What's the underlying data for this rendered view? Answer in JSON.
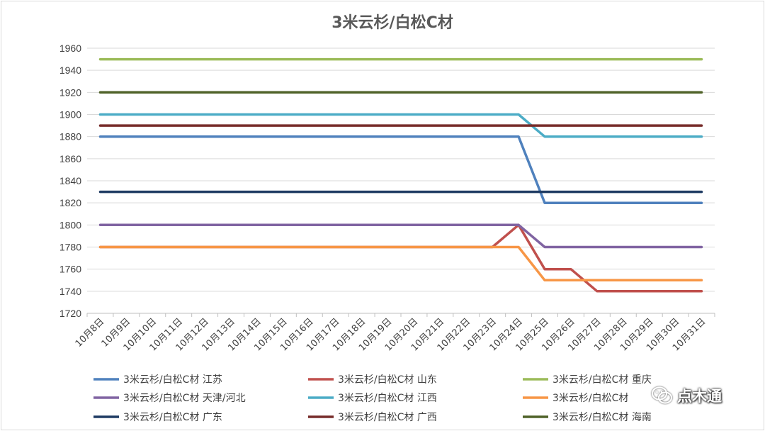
{
  "chart_data": {
    "type": "line",
    "title": "3米云杉/白松C材",
    "categories": [
      "10月8日",
      "10月9日",
      "10月10日",
      "10月11日",
      "10月12日",
      "10月13日",
      "10月14日",
      "10月15日",
      "10月16日",
      "10月17日",
      "10月18日",
      "10月19日",
      "10月20日",
      "10月21日",
      "10月22日",
      "10月23日",
      "10月24日",
      "10月25日",
      "10月26日",
      "10月27日",
      "10月28日",
      "10月29日",
      "10月30日",
      "10月31日"
    ],
    "ylim": [
      1720,
      1960
    ],
    "yticks": [
      1720,
      1740,
      1760,
      1780,
      1800,
      1820,
      1840,
      1860,
      1880,
      1900,
      1920,
      1940,
      1960
    ],
    "grid": true,
    "legend_position": "bottom",
    "series": [
      {
        "name": "3米云杉/白松C材 江苏",
        "color": "#4F81BD",
        "values": [
          1880,
          1880,
          1880,
          1880,
          1880,
          1880,
          1880,
          1880,
          1880,
          1880,
          1880,
          1880,
          1880,
          1880,
          1880,
          1880,
          1880,
          1820,
          1820,
          1820,
          1820,
          1820,
          1820,
          1820
        ]
      },
      {
        "name": "3米云杉/白松C材 山东",
        "color": "#C0504D",
        "values": [
          1780,
          1780,
          1780,
          1780,
          1780,
          1780,
          1780,
          1780,
          1780,
          1780,
          1780,
          1780,
          1780,
          1780,
          1780,
          1780,
          1800,
          1760,
          1760,
          1740,
          1740,
          1740,
          1740,
          1740
        ]
      },
      {
        "name": "3米云杉/白松C材 重庆",
        "color": "#9BBB59",
        "values": [
          1950,
          1950,
          1950,
          1950,
          1950,
          1950,
          1950,
          1950,
          1950,
          1950,
          1950,
          1950,
          1950,
          1950,
          1950,
          1950,
          1950,
          1950,
          1950,
          1950,
          1950,
          1950,
          1950,
          1950
        ]
      },
      {
        "name": "3米云杉/白松C材 天津/河北",
        "color": "#8064A2",
        "values": [
          1800,
          1800,
          1800,
          1800,
          1800,
          1800,
          1800,
          1800,
          1800,
          1800,
          1800,
          1800,
          1800,
          1800,
          1800,
          1800,
          1800,
          1780,
          1780,
          1780,
          1780,
          1780,
          1780,
          1780
        ]
      },
      {
        "name": "3米云杉/白松C材 江西",
        "color": "#4BACC6",
        "values": [
          1900,
          1900,
          1900,
          1900,
          1900,
          1900,
          1900,
          1900,
          1900,
          1900,
          1900,
          1900,
          1900,
          1900,
          1900,
          1900,
          1900,
          1880,
          1880,
          1880,
          1880,
          1880,
          1880,
          1880
        ]
      },
      {
        "name": "3米云杉/白松C材",
        "color": "#F79646",
        "values": [
          1780,
          1780,
          1780,
          1780,
          1780,
          1780,
          1780,
          1780,
          1780,
          1780,
          1780,
          1780,
          1780,
          1780,
          1780,
          1780,
          1780,
          1750,
          1750,
          1750,
          1750,
          1750,
          1750,
          1750
        ]
      },
      {
        "name": "3米云杉/白松C材 广东",
        "color": "#1F3B63",
        "values": [
          1830,
          1830,
          1830,
          1830,
          1830,
          1830,
          1830,
          1830,
          1830,
          1830,
          1830,
          1830,
          1830,
          1830,
          1830,
          1830,
          1830,
          1830,
          1830,
          1830,
          1830,
          1830,
          1830,
          1830
        ]
      },
      {
        "name": "3米云杉/白松C材 广西",
        "color": "#772C2A",
        "values": [
          1890,
          1890,
          1890,
          1890,
          1890,
          1890,
          1890,
          1890,
          1890,
          1890,
          1890,
          1890,
          1890,
          1890,
          1890,
          1890,
          1890,
          1890,
          1890,
          1890,
          1890,
          1890,
          1890,
          1890
        ]
      },
      {
        "name": "3米云杉/白松C材 海南",
        "color": "#4F6228",
        "values": [
          1920,
          1920,
          1920,
          1920,
          1920,
          1920,
          1920,
          1920,
          1920,
          1920,
          1920,
          1920,
          1920,
          1920,
          1920,
          1920,
          1920,
          1920,
          1920,
          1920,
          1920,
          1920,
          1920,
          1920
        ]
      }
    ]
  },
  "watermark": {
    "text": "点木通",
    "icon": "wechat-icon"
  }
}
